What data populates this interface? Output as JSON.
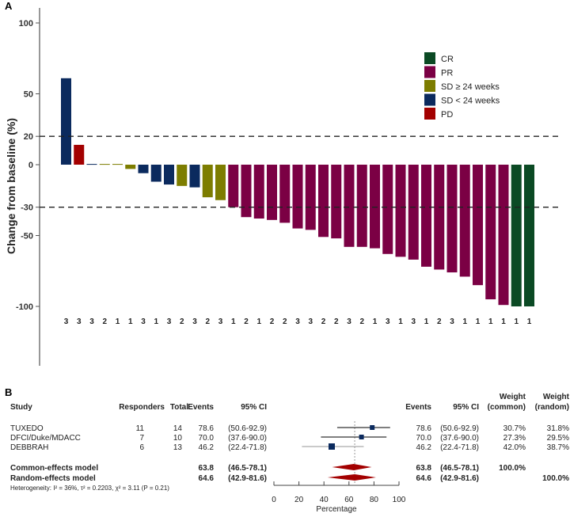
{
  "chart_data": [
    {
      "type": "bar",
      "panel_label": "A",
      "ylabel": "Change from baseline (%)",
      "ylim": [
        -140,
        100
      ],
      "yticks": [
        100,
        50,
        20,
        0,
        -30,
        -50,
        -100
      ],
      "reference_lines": [
        20,
        -30
      ],
      "grid": false,
      "legend_position": "top-right",
      "legend": [
        {
          "key": "CR",
          "label": "CR",
          "color": "#0b4a24"
        },
        {
          "key": "PR",
          "label": "PR",
          "color": "#7b0044"
        },
        {
          "key": "SD24p",
          "label": "SD ≥ 24 weeks",
          "color": "#7d7d00"
        },
        {
          "key": "SD24m",
          "label": "SD < 24 weeks",
          "color": "#0b2a5e"
        },
        {
          "key": "PD",
          "label": "PD",
          "color": "#a30000"
        }
      ],
      "values": [
        61,
        14,
        0.5,
        0.5,
        0.5,
        -3,
        -6,
        -12,
        -14,
        -15,
        -16,
        -23,
        -25,
        -30,
        -37,
        -38,
        -39,
        -41,
        -45,
        -46,
        -51,
        -52,
        -58,
        -58,
        -59,
        -63,
        -65,
        -67,
        -72,
        -74,
        -76,
        -79,
        -85,
        -95,
        -99,
        -100,
        -100
      ],
      "response": [
        "SD24m",
        "PD",
        "SD24m",
        "SD24p",
        "SD24p",
        "SD24p",
        "SD24m",
        "SD24m",
        "SD24m",
        "SD24p",
        "SD24m",
        "SD24p",
        "SD24p",
        "PR",
        "PR",
        "PR",
        "PR",
        "PR",
        "PR",
        "PR",
        "PR",
        "PR",
        "PR",
        "PR",
        "PR",
        "PR",
        "PR",
        "PR",
        "PR",
        "PR",
        "PR",
        "PR",
        "PR",
        "PR",
        "PR",
        "CR",
        "CR"
      ],
      "bar_labels": [
        "3",
        "3",
        "3",
        "2",
        "1",
        "1",
        "3",
        "1",
        "3",
        "2",
        "3",
        "2",
        "3",
        "1",
        "2",
        "1",
        "2",
        "2",
        "3",
        "3",
        "2",
        "2",
        "3",
        "2",
        "1",
        "3",
        "1",
        "3",
        "1",
        "2",
        "3",
        "1",
        "1",
        "1",
        "1",
        "1",
        "1"
      ]
    },
    {
      "type": "forest",
      "panel_label": "B",
      "xlabel": "Percentage",
      "xlim": [
        0,
        100
      ],
      "xticks": [
        "0",
        "20",
        "40",
        "60",
        "80",
        "100"
      ],
      "headers": {
        "study": "Study",
        "responders": "Responders",
        "total": "Total",
        "events": "Events",
        "ci": "95% CI",
        "events_r": "Events",
        "ci_r": "95% CI",
        "weight_common_1": "Weight",
        "weight_common_2": "(common)",
        "weight_random_1": "Weight",
        "weight_random_2": "(random)"
      },
      "studies": [
        {
          "study": "TUXEDO",
          "responders": "11",
          "total": "14",
          "events": "78.6",
          "ci": "(50.6-92.9)",
          "weight_common": "30.7%",
          "weight_random": "31.8%",
          "est": 78.6,
          "lo": 50.6,
          "hi": 92.9
        },
        {
          "study": "DFCI/Duke/MDACC",
          "responders": "7",
          "total": "10",
          "events": "70.0",
          "ci": "(37.6-90.0)",
          "weight_common": "27.3%",
          "weight_random": "29.5%",
          "est": 70.0,
          "lo": 37.6,
          "hi": 90.0
        },
        {
          "study": "DEBBRAH",
          "responders": "6",
          "total": "13",
          "events": "46.2",
          "ci": "(22.4-71.8)",
          "weight_common": "42.0%",
          "weight_random": "38.7%",
          "est": 46.2,
          "lo": 22.4,
          "hi": 71.8
        }
      ],
      "models": [
        {
          "study": "Common-effects model",
          "events": "63.8",
          "ci": "(46.5-78.1)",
          "weight_common": "100.0%",
          "weight_random": "",
          "est": 63.8,
          "lo": 46.5,
          "hi": 78.1
        },
        {
          "study": "Random-effects model",
          "events": "64.6",
          "ci": "(42.9-81.6)",
          "weight_common": "",
          "weight_random": "100.0%",
          "est": 64.6,
          "lo": 42.9,
          "hi": 81.6
        }
      ],
      "heterogeneity": "Heterogeneity: I² = 36%, τ² = 0.2203, χ² = 3.11 (P = 0.21)",
      "colors": {
        "square": "#0b2a5e",
        "diamond": "#a30000",
        "ci_line": "#333333",
        "ci_line_light": "#aaaaaa"
      }
    }
  ]
}
